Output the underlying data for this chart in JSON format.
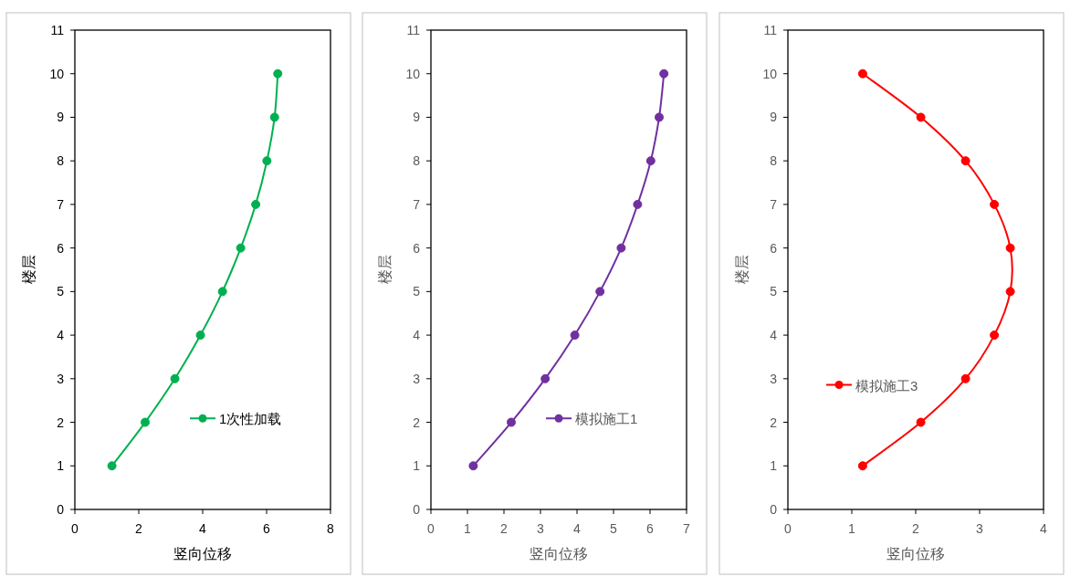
{
  "chart_data": [
    {
      "type": "line",
      "xlabel": "竖向位移",
      "ylabel": "楼层",
      "xlim": [
        0,
        8
      ],
      "xticks": [
        0,
        2,
        4,
        6,
        8
      ],
      "ylim": [
        0,
        11
      ],
      "yticks": [
        0,
        1,
        2,
        3,
        4,
        5,
        6,
        7,
        8,
        9,
        10,
        11
      ],
      "legend": "bottom right",
      "marker": "circle",
      "line_style": "solid",
      "grid": false,
      "series": [
        {
          "name": "1次性加载",
          "color": "#00b050",
          "x": [
            1.16,
            2.2,
            3.13,
            3.93,
            4.62,
            5.19,
            5.66,
            6.01,
            6.25,
            6.35
          ],
          "values": [
            1,
            2,
            3,
            4,
            5,
            6,
            7,
            8,
            9,
            10
          ]
        }
      ]
    },
    {
      "type": "line",
      "xlabel": "竖向位移",
      "ylabel": "楼层",
      "xlim": [
        0,
        7
      ],
      "xticks": [
        0,
        1,
        2,
        3,
        4,
        5,
        6,
        7
      ],
      "ylim": [
        0,
        11
      ],
      "yticks": [
        0,
        1,
        2,
        3,
        4,
        5,
        6,
        7,
        8,
        9,
        10,
        11
      ],
      "legend": "bottom right",
      "marker": "circle",
      "line_style": "solid",
      "grid": false,
      "series": [
        {
          "name": "模拟施工1",
          "color": "#7030a0",
          "x": [
            1.16,
            2.2,
            3.13,
            3.94,
            4.63,
            5.21,
            5.66,
            6.02,
            6.25,
            6.38
          ],
          "values": [
            1,
            2,
            3,
            4,
            5,
            6,
            7,
            8,
            9,
            10
          ]
        }
      ]
    },
    {
      "type": "line",
      "xlabel": "竖向位移",
      "ylabel": "楼层",
      "xlim": [
        0,
        4
      ],
      "xticks": [
        0,
        1,
        2,
        3,
        4
      ],
      "ylim": [
        0,
        11
      ],
      "yticks": [
        0,
        1,
        2,
        3,
        4,
        5,
        6,
        7,
        8,
        9,
        10,
        11
      ],
      "legend": "bottom left",
      "marker": "circle",
      "line_style": "solid",
      "grid": false,
      "series": [
        {
          "name": "模拟施工3",
          "color": "#ff0000",
          "x": [
            1.17,
            2.08,
            2.78,
            3.23,
            3.48,
            3.48,
            3.23,
            2.78,
            2.08,
            1.17
          ],
          "values": [
            1,
            2,
            3,
            4,
            5,
            6,
            7,
            8,
            9,
            10
          ]
        }
      ]
    }
  ]
}
